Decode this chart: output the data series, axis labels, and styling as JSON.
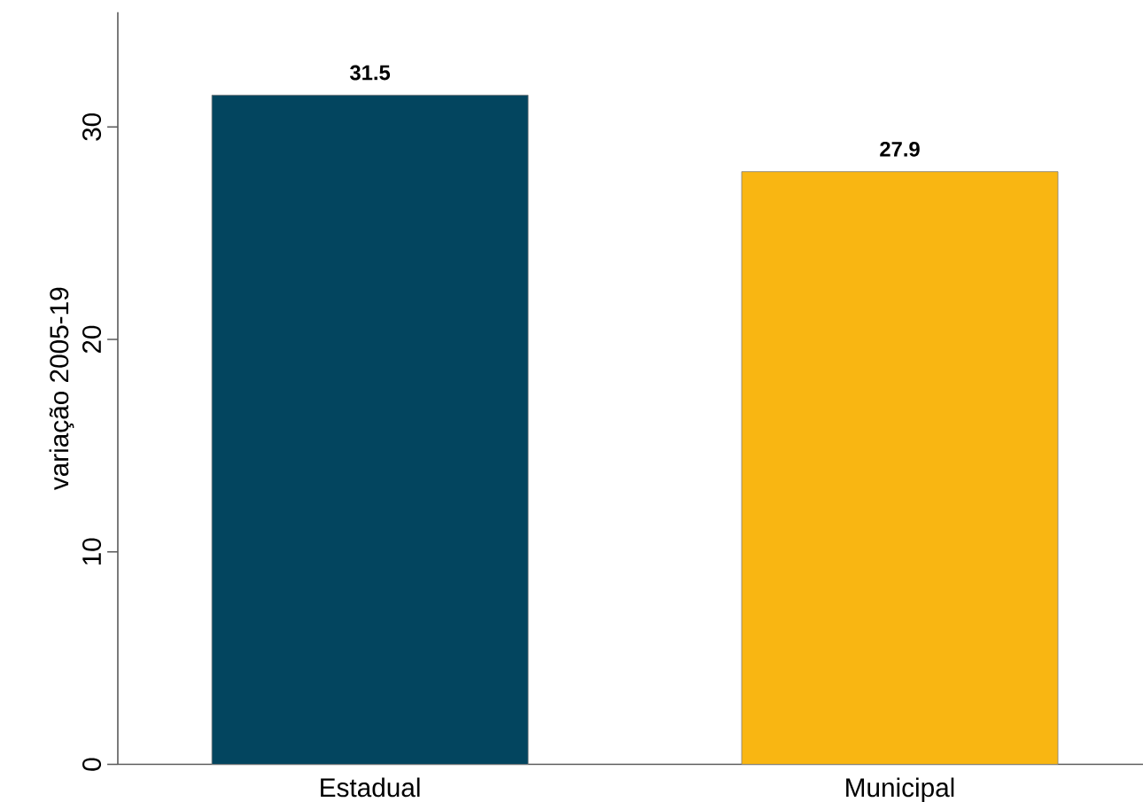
{
  "chart_data": {
    "type": "bar",
    "categories": [
      "Estadual",
      "Municipal"
    ],
    "values": [
      31.5,
      27.9
    ],
    "colors": [
      "#03455f",
      "#f9b612"
    ],
    "ylabel": "variação 2005-19",
    "ylim": [
      0,
      35.4
    ],
    "yticks": [
      0,
      10,
      20,
      30
    ],
    "data_labels": true,
    "grid": false
  }
}
